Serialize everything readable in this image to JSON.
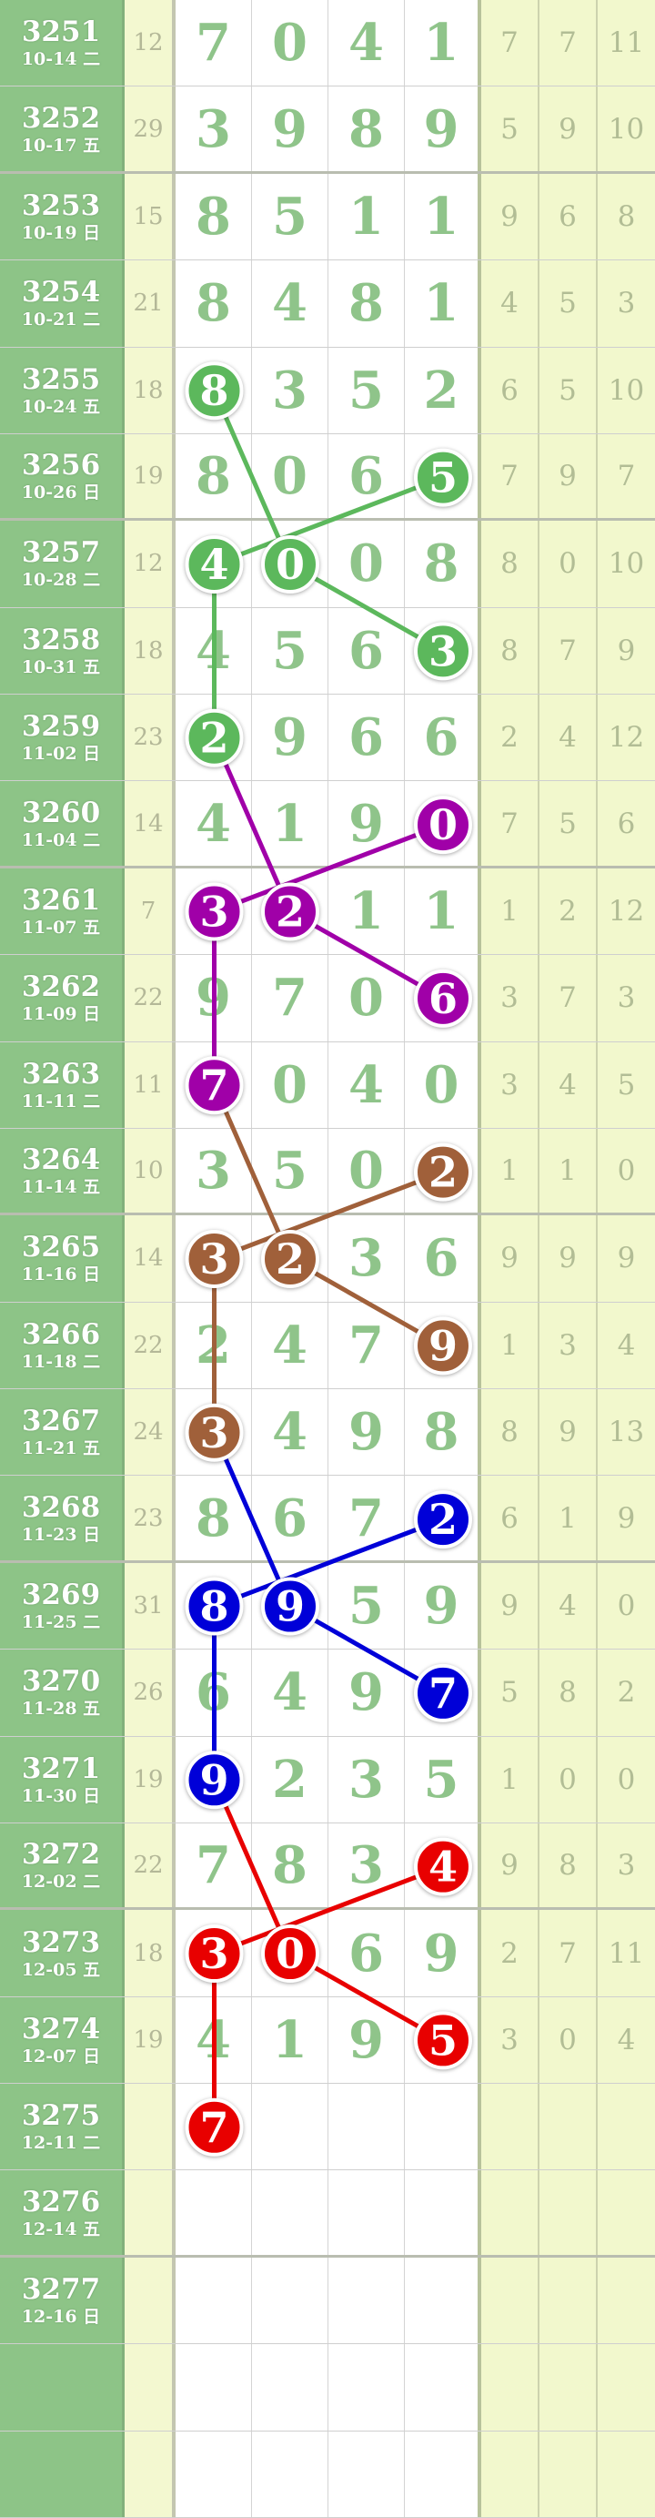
{
  "rows": [
    {
      "issue": "3251",
      "date": "10-14 二",
      "sum": "12",
      "digits": [
        "7",
        "0",
        "4",
        "1"
      ],
      "right": [
        "7",
        "7",
        "11"
      ]
    },
    {
      "issue": "3252",
      "date": "10-17 五",
      "sum": "29",
      "digits": [
        "3",
        "9",
        "8",
        "9"
      ],
      "right": [
        "5",
        "9",
        "10"
      ]
    },
    {
      "issue": "3253",
      "date": "10-19 日",
      "sum": "15",
      "digits": [
        "8",
        "5",
        "1",
        "1"
      ],
      "right": [
        "9",
        "6",
        "8"
      ]
    },
    {
      "issue": "3254",
      "date": "10-21 二",
      "sum": "21",
      "digits": [
        "8",
        "4",
        "8",
        "1"
      ],
      "right": [
        "4",
        "5",
        "3"
      ]
    },
    {
      "issue": "3255",
      "date": "10-24 五",
      "sum": "18",
      "digits": [
        "8",
        "3",
        "5",
        "2"
      ],
      "right": [
        "6",
        "5",
        "10"
      ]
    },
    {
      "issue": "3256",
      "date": "10-26 日",
      "sum": "19",
      "digits": [
        "8",
        "0",
        "6",
        "5"
      ],
      "right": [
        "7",
        "9",
        "7"
      ]
    },
    {
      "issue": "3257",
      "date": "10-28 二",
      "sum": "12",
      "digits": [
        "4",
        "0",
        "0",
        "8"
      ],
      "right": [
        "8",
        "0",
        "10"
      ]
    },
    {
      "issue": "3258",
      "date": "10-31 五",
      "sum": "18",
      "digits": [
        "4",
        "5",
        "6",
        "3"
      ],
      "right": [
        "8",
        "7",
        "9"
      ]
    },
    {
      "issue": "3259",
      "date": "11-02 日",
      "sum": "23",
      "digits": [
        "2",
        "9",
        "6",
        "6"
      ],
      "right": [
        "2",
        "4",
        "12"
      ]
    },
    {
      "issue": "3260",
      "date": "11-04 二",
      "sum": "14",
      "digits": [
        "4",
        "1",
        "9",
        "0"
      ],
      "right": [
        "7",
        "5",
        "6"
      ]
    },
    {
      "issue": "3261",
      "date": "11-07 五",
      "sum": "7",
      "digits": [
        "3",
        "2",
        "1",
        "1"
      ],
      "right": [
        "1",
        "2",
        "12"
      ]
    },
    {
      "issue": "3262",
      "date": "11-09 日",
      "sum": "22",
      "digits": [
        "9",
        "7",
        "0",
        "6"
      ],
      "right": [
        "3",
        "7",
        "3"
      ]
    },
    {
      "issue": "3263",
      "date": "11-11 二",
      "sum": "11",
      "digits": [
        "7",
        "0",
        "4",
        "0"
      ],
      "right": [
        "3",
        "4",
        "5"
      ]
    },
    {
      "issue": "3264",
      "date": "11-14 五",
      "sum": "10",
      "digits": [
        "3",
        "5",
        "0",
        "2"
      ],
      "right": [
        "1",
        "1",
        "0"
      ]
    },
    {
      "issue": "3265",
      "date": "11-16 日",
      "sum": "14",
      "digits": [
        "3",
        "2",
        "3",
        "6"
      ],
      "right": [
        "9",
        "9",
        "9"
      ]
    },
    {
      "issue": "3266",
      "date": "11-18 二",
      "sum": "22",
      "digits": [
        "2",
        "4",
        "7",
        "9"
      ],
      "right": [
        "1",
        "3",
        "4"
      ]
    },
    {
      "issue": "3267",
      "date": "11-21 五",
      "sum": "24",
      "digits": [
        "3",
        "4",
        "9",
        "8"
      ],
      "right": [
        "8",
        "9",
        "13"
      ]
    },
    {
      "issue": "3268",
      "date": "11-23 日",
      "sum": "23",
      "digits": [
        "8",
        "6",
        "7",
        "2"
      ],
      "right": [
        "6",
        "1",
        "9"
      ]
    },
    {
      "issue": "3269",
      "date": "11-25 二",
      "sum": "31",
      "digits": [
        "8",
        "9",
        "5",
        "9"
      ],
      "right": [
        "9",
        "4",
        "0"
      ]
    },
    {
      "issue": "3270",
      "date": "11-28 五",
      "sum": "26",
      "digits": [
        "6",
        "4",
        "9",
        "7"
      ],
      "right": [
        "5",
        "8",
        "2"
      ]
    },
    {
      "issue": "3271",
      "date": "11-30 日",
      "sum": "19",
      "digits": [
        "9",
        "2",
        "3",
        "5"
      ],
      "right": [
        "1",
        "0",
        "0"
      ]
    },
    {
      "issue": "3272",
      "date": "12-02 二",
      "sum": "22",
      "digits": [
        "7",
        "8",
        "3",
        "4"
      ],
      "right": [
        "9",
        "8",
        "3"
      ]
    },
    {
      "issue": "3273",
      "date": "12-05 五",
      "sum": "18",
      "digits": [
        "3",
        "0",
        "6",
        "9"
      ],
      "right": [
        "2",
        "7",
        "11"
      ]
    },
    {
      "issue": "3274",
      "date": "12-07 日",
      "sum": "19",
      "digits": [
        "4",
        "1",
        "9",
        "5"
      ],
      "right": [
        "3",
        "0",
        "4"
      ]
    },
    {
      "issue": "3275",
      "date": "12-11 二",
      "sum": "",
      "digits": [
        "7",
        "",
        "",
        ""
      ],
      "right": [
        "",
        "",
        ""
      ]
    },
    {
      "issue": "3276",
      "date": "12-14 五",
      "sum": "",
      "digits": [
        "",
        "",
        "",
        ""
      ],
      "right": [
        "",
        "",
        ""
      ]
    },
    {
      "issue": "3277",
      "date": "12-16 日",
      "sum": "",
      "digits": [
        "",
        "",
        "",
        ""
      ],
      "right": [
        "",
        "",
        ""
      ]
    },
    {
      "issue": "",
      "date": "",
      "sum": "",
      "digits": [
        "",
        "",
        "",
        ""
      ],
      "right": [
        "",
        "",
        ""
      ]
    },
    {
      "issue": "",
      "date": "",
      "sum": "",
      "digits": [
        "",
        "",
        "",
        ""
      ],
      "right": [
        "",
        "",
        ""
      ]
    }
  ],
  "colors": {
    "green": "#5cb85c",
    "purple": "#a000a8",
    "brown": "#a0603a",
    "blue": "#0000d8",
    "red": "#e80000"
  },
  "highlights": [
    {
      "row": 4,
      "col": 0,
      "color": "green"
    },
    {
      "row": 5,
      "col": 3,
      "color": "green"
    },
    {
      "row": 6,
      "col": 0,
      "color": "green"
    },
    {
      "row": 6,
      "col": 1,
      "color": "green"
    },
    {
      "row": 7,
      "col": 3,
      "color": "green"
    },
    {
      "row": 8,
      "col": 0,
      "color": "green"
    },
    {
      "row": 9,
      "col": 3,
      "color": "purple"
    },
    {
      "row": 10,
      "col": 0,
      "color": "purple"
    },
    {
      "row": 10,
      "col": 1,
      "color": "purple"
    },
    {
      "row": 11,
      "col": 3,
      "color": "purple"
    },
    {
      "row": 12,
      "col": 0,
      "color": "purple"
    },
    {
      "row": 13,
      "col": 3,
      "color": "brown"
    },
    {
      "row": 14,
      "col": 0,
      "color": "brown"
    },
    {
      "row": 14,
      "col": 1,
      "color": "brown"
    },
    {
      "row": 15,
      "col": 3,
      "color": "brown"
    },
    {
      "row": 16,
      "col": 0,
      "color": "brown"
    },
    {
      "row": 17,
      "col": 3,
      "color": "blue"
    },
    {
      "row": 18,
      "col": 0,
      "color": "blue"
    },
    {
      "row": 18,
      "col": 1,
      "color": "blue"
    },
    {
      "row": 19,
      "col": 3,
      "color": "blue"
    },
    {
      "row": 20,
      "col": 0,
      "color": "blue"
    },
    {
      "row": 21,
      "col": 3,
      "color": "red"
    },
    {
      "row": 22,
      "col": 0,
      "color": "red"
    },
    {
      "row": 22,
      "col": 1,
      "color": "red"
    },
    {
      "row": 23,
      "col": 3,
      "color": "red"
    },
    {
      "row": 24,
      "col": 0,
      "color": "red"
    }
  ],
  "links": [
    {
      "from": [
        4,
        0
      ],
      "to": [
        6,
        1
      ],
      "color": "green"
    },
    {
      "from": [
        5,
        3
      ],
      "to": [
        6,
        0
      ],
      "color": "green"
    },
    {
      "from": [
        6,
        1
      ],
      "to": [
        7,
        3
      ],
      "color": "green"
    },
    {
      "from": [
        6,
        0
      ],
      "to": [
        8,
        0
      ],
      "color": "green"
    },
    {
      "from": [
        8,
        0
      ],
      "to": [
        10,
        1
      ],
      "color": "purple"
    },
    {
      "from": [
        9,
        3
      ],
      "to": [
        10,
        0
      ],
      "color": "purple"
    },
    {
      "from": [
        10,
        1
      ],
      "to": [
        11,
        3
      ],
      "color": "purple"
    },
    {
      "from": [
        10,
        0
      ],
      "to": [
        12,
        0
      ],
      "color": "purple"
    },
    {
      "from": [
        12,
        0
      ],
      "to": [
        14,
        1
      ],
      "color": "brown"
    },
    {
      "from": [
        13,
        3
      ],
      "to": [
        14,
        0
      ],
      "color": "brown"
    },
    {
      "from": [
        14,
        1
      ],
      "to": [
        15,
        3
      ],
      "color": "brown"
    },
    {
      "from": [
        14,
        0
      ],
      "to": [
        16,
        0
      ],
      "color": "brown"
    },
    {
      "from": [
        16,
        0
      ],
      "to": [
        18,
        1
      ],
      "color": "blue"
    },
    {
      "from": [
        17,
        3
      ],
      "to": [
        18,
        0
      ],
      "color": "blue"
    },
    {
      "from": [
        18,
        1
      ],
      "to": [
        19,
        3
      ],
      "color": "blue"
    },
    {
      "from": [
        18,
        0
      ],
      "to": [
        20,
        0
      ],
      "color": "blue"
    },
    {
      "from": [
        20,
        0
      ],
      "to": [
        22,
        1
      ],
      "color": "red"
    },
    {
      "from": [
        21,
        3
      ],
      "to": [
        22,
        0
      ],
      "color": "red"
    },
    {
      "from": [
        22,
        1
      ],
      "to": [
        23,
        3
      ],
      "color": "red"
    },
    {
      "from": [
        22,
        0
      ],
      "to": [
        24,
        0
      ],
      "color": "red"
    }
  ]
}
